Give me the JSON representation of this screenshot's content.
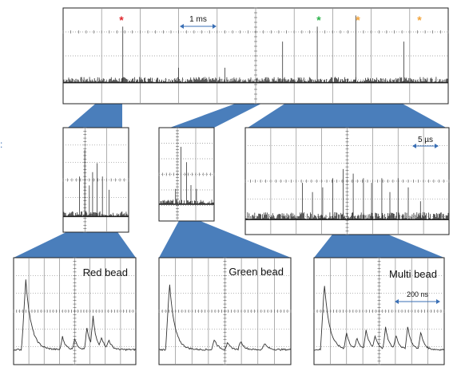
{
  "top_panel": {
    "scale_label": "1 ms",
    "markers": [
      {
        "symbol": "*",
        "color": "#e0262d"
      },
      {
        "symbol": "*",
        "color": "#2bb34a"
      },
      {
        "symbol": "*",
        "color": "#f2a33a"
      },
      {
        "symbol": "*",
        "color": "#f2a33a"
      }
    ]
  },
  "mid_panels": {
    "right_scale_label": "5 µs"
  },
  "bottom_panels": [
    {
      "title": "Red bead"
    },
    {
      "title": "Green bead"
    },
    {
      "title": "Multi bead",
      "scale_label": "200 ns"
    }
  ],
  "colors": {
    "connector": "#4a7ebb",
    "trace": "#333333",
    "grid": "#8c8c8c",
    "arrow": "#3a6fb5"
  }
}
